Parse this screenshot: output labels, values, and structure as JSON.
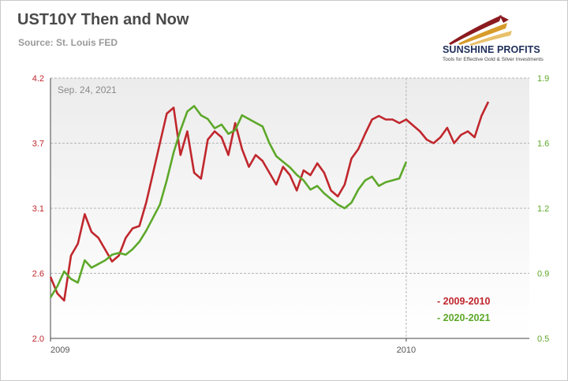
{
  "header": {
    "title": "UST10Y Then and Now",
    "subtitle": "Source: St. Louis FED"
  },
  "logo": {
    "name": "SUNSHINE PROFITS",
    "tagline": "Tools for Effective Gold & Silver Investments",
    "icon": "sunrise-swoosh-icon"
  },
  "colors": {
    "series_2009": "#c0272d",
    "series_2020": "#5da82a",
    "grid": "#b5b5b5"
  },
  "chart_data": {
    "type": "line",
    "title": "UST10Y Then and Now",
    "date_label": "Sep. 24, 2021",
    "x_ticks": [
      "2009",
      "2010"
    ],
    "x_tick_positions_weeks": [
      0,
      52
    ],
    "x_range_weeks": [
      0,
      70
    ],
    "x_unit": "weeks",
    "y_left": {
      "range": [
        2.0,
        4.2
      ],
      "ticks": [
        "2.0",
        "2.6",
        "3.1",
        "3.7",
        "4.2"
      ]
    },
    "y_right": {
      "range": [
        0.5,
        1.9
      ],
      "ticks": [
        "0.5",
        "0.9",
        "1.2",
        "1.6",
        "1.9"
      ]
    },
    "grid": "dashed",
    "legend": {
      "position": "bottom-right",
      "entries": [
        "- 2009-2010",
        "- 2020-2021"
      ]
    },
    "series": [
      {
        "name": "2009-2010",
        "axis": "left",
        "x": [
          0,
          1,
          2,
          3,
          4,
          5,
          6,
          7,
          8,
          9,
          10,
          11,
          12,
          13,
          14,
          15,
          16,
          17,
          18,
          19,
          20,
          21,
          22,
          23,
          24,
          25,
          26,
          27,
          28,
          29,
          30,
          31,
          32,
          33,
          34,
          35,
          36,
          37,
          38,
          39,
          40,
          41,
          42,
          43,
          44,
          45,
          46,
          47,
          48,
          49,
          50,
          51,
          52,
          53,
          54,
          55,
          56,
          57,
          58,
          59,
          60,
          61,
          62,
          63,
          64
        ],
        "values": [
          2.52,
          2.38,
          2.32,
          2.7,
          2.8,
          3.05,
          2.9,
          2.85,
          2.75,
          2.65,
          2.7,
          2.85,
          2.93,
          2.95,
          3.15,
          3.4,
          3.65,
          3.9,
          3.95,
          3.55,
          3.75,
          3.4,
          3.35,
          3.68,
          3.75,
          3.7,
          3.55,
          3.82,
          3.6,
          3.45,
          3.55,
          3.5,
          3.4,
          3.3,
          3.45,
          3.38,
          3.25,
          3.42,
          3.38,
          3.48,
          3.4,
          3.25,
          3.2,
          3.3,
          3.52,
          3.6,
          3.73,
          3.85,
          3.88,
          3.85,
          3.85,
          3.82,
          3.85,
          3.8,
          3.75,
          3.68,
          3.65,
          3.7,
          3.78,
          3.65,
          3.72,
          3.75,
          3.7,
          3.88,
          4.0
        ]
      },
      {
        "name": "2020-2021",
        "axis": "right",
        "x": [
          0,
          1,
          2,
          3,
          4,
          5,
          6,
          7,
          8,
          9,
          10,
          11,
          12,
          13,
          14,
          15,
          16,
          17,
          18,
          19,
          20,
          21,
          22,
          23,
          24,
          25,
          26,
          27,
          28,
          29,
          30,
          31,
          32,
          33,
          34,
          35,
          36,
          37,
          38,
          39,
          40,
          41,
          42,
          43,
          44,
          45,
          46,
          47,
          48,
          49,
          50,
          51,
          52
        ],
        "values": [
          0.72,
          0.78,
          0.86,
          0.82,
          0.8,
          0.92,
          0.88,
          0.9,
          0.92,
          0.95,
          0.96,
          0.95,
          0.98,
          1.02,
          1.08,
          1.15,
          1.22,
          1.35,
          1.5,
          1.62,
          1.72,
          1.75,
          1.7,
          1.68,
          1.63,
          1.65,
          1.6,
          1.62,
          1.7,
          1.68,
          1.66,
          1.64,
          1.55,
          1.48,
          1.45,
          1.42,
          1.38,
          1.35,
          1.3,
          1.32,
          1.28,
          1.25,
          1.22,
          1.2,
          1.23,
          1.3,
          1.35,
          1.37,
          1.32,
          1.34,
          1.35,
          1.36,
          1.45
        ]
      }
    ]
  }
}
